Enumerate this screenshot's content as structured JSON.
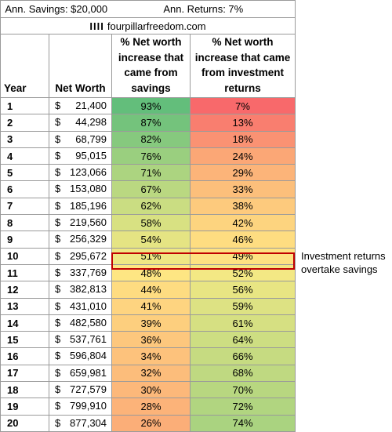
{
  "banner": {
    "savings": "Ann. Savings: $20,000",
    "returns": "Ann. Returns: 7%"
  },
  "site": {
    "mark": "IIII",
    "name": "fourpillarfreedom.com"
  },
  "headers": {
    "year": "Year",
    "net_worth": "Net Worth",
    "savings_pct": [
      "% Net worth",
      "increase that",
      "came from",
      "savings"
    ],
    "returns_pct": [
      "% Net worth",
      "increase that came",
      "from investment",
      "returns"
    ]
  },
  "currency": "$",
  "rows": [
    {
      "year": "1",
      "net_worth": "21,400",
      "savings": "93%",
      "returns": "7%",
      "s_color": "#63be7b",
      "r_color": "#f8696b"
    },
    {
      "year": "2",
      "net_worth": "44,298",
      "savings": "87%",
      "returns": "13%",
      "s_color": "#74c37c",
      "r_color": "#f97e6f"
    },
    {
      "year": "3",
      "net_worth": "68,799",
      "savings": "82%",
      "returns": "18%",
      "s_color": "#86c97e",
      "r_color": "#fa9273"
    },
    {
      "year": "4",
      "net_worth": "95,015",
      "savings": "76%",
      "returns": "24%",
      "s_color": "#9acf7f",
      "r_color": "#fba776"
    },
    {
      "year": "5",
      "net_worth": "123,066",
      "savings": "71%",
      "returns": "29%",
      "s_color": "#acd480",
      "r_color": "#fcb479"
    },
    {
      "year": "6",
      "net_worth": "153,080",
      "savings": "67%",
      "returns": "33%",
      "s_color": "#bad881",
      "r_color": "#fcbf7b"
    },
    {
      "year": "7",
      "net_worth": "185,196",
      "savings": "62%",
      "returns": "38%",
      "s_color": "#cadd82",
      "r_color": "#fdca7d"
    },
    {
      "year": "8",
      "net_worth": "219,560",
      "savings": "58%",
      "returns": "42%",
      "s_color": "#d8e182",
      "r_color": "#fdd47f"
    },
    {
      "year": "9",
      "net_worth": "256,329",
      "savings": "54%",
      "returns": "46%",
      "s_color": "#e5e483",
      "r_color": "#fedd81"
    },
    {
      "year": "10",
      "net_worth": "295,672",
      "savings": "51%",
      "returns": "49%",
      "s_color": "#efe784",
      "r_color": "#fee282"
    },
    {
      "year": "11",
      "net_worth": "337,769",
      "savings": "48%",
      "returns": "52%",
      "s_color": "#fee683",
      "r_color": "#f3e884"
    },
    {
      "year": "12",
      "net_worth": "382,813",
      "savings": "44%",
      "returns": "56%",
      "s_color": "#fedc81",
      "r_color": "#e8e583"
    },
    {
      "year": "13",
      "net_worth": "431,010",
      "savings": "41%",
      "returns": "59%",
      "s_color": "#fed480",
      "r_color": "#dde283"
    },
    {
      "year": "14",
      "net_worth": "482,580",
      "savings": "39%",
      "returns": "61%",
      "s_color": "#fdcf7e",
      "r_color": "#d6e082"
    },
    {
      "year": "15",
      "net_worth": "537,761",
      "savings": "36%",
      "returns": "64%",
      "s_color": "#fdc77d",
      "r_color": "#cdde82"
    },
    {
      "year": "16",
      "net_worth": "596,804",
      "savings": "34%",
      "returns": "66%",
      "s_color": "#fdc27c",
      "r_color": "#c6db81"
    },
    {
      "year": "17",
      "net_worth": "659,981",
      "savings": "32%",
      "returns": "68%",
      "s_color": "#fcbd7b",
      "r_color": "#bfd981"
    },
    {
      "year": "18",
      "net_worth": "727,579",
      "savings": "30%",
      "returns": "70%",
      "s_color": "#fcb87a",
      "r_color": "#b8d780"
    },
    {
      "year": "19",
      "net_worth": "799,910",
      "savings": "28%",
      "returns": "72%",
      "s_color": "#fcb379",
      "r_color": "#b1d580"
    },
    {
      "year": "20",
      "net_worth": "877,304",
      "savings": "26%",
      "returns": "74%",
      "s_color": "#fbae78",
      "r_color": "#aad380"
    }
  ],
  "annotation": {
    "line1": "Investment returns",
    "line2": "overtake savings",
    "highlight_color": "#c00000"
  }
}
